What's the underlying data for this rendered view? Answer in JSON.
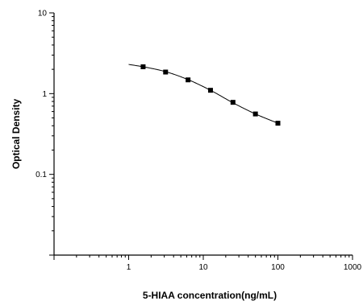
{
  "chart_data": {
    "type": "scatter",
    "title": "",
    "xlabel": "5-HIAA concentration(ng/mL)",
    "ylabel": "Optical Density",
    "x_scale": "log",
    "y_scale": "log",
    "xlim": [
      0.1,
      1000
    ],
    "ylim": [
      0.01,
      10
    ],
    "x_ticks": [
      1,
      10,
      100,
      1000
    ],
    "x_tick_labels": [
      "1",
      "10",
      "100",
      "1000"
    ],
    "y_ticks": [
      0.1,
      1,
      10
    ],
    "y_tick_labels": [
      "0.1",
      "1",
      "10"
    ],
    "grid": false,
    "legend": "none",
    "series": [
      {
        "x": [
          1.5625,
          3.125,
          6.25,
          12.5,
          25,
          50,
          100
        ],
        "y": [
          2.15,
          1.85,
          1.48,
          1.1,
          0.78,
          0.56,
          0.43
        ]
      }
    ],
    "fit_curve": {
      "x": [
        1,
        1.5625,
        3.125,
        6.25,
        12.5,
        25,
        50,
        100
      ],
      "y": [
        2.3,
        2.15,
        1.87,
        1.49,
        1.1,
        0.77,
        0.56,
        0.43
      ]
    }
  }
}
